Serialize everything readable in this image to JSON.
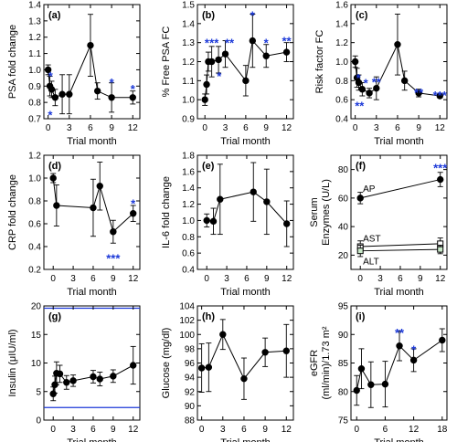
{
  "colors": {
    "ink": "#000000",
    "star": "#1c39d8",
    "reference": "#1c39d8",
    "alt_fill": "#c9e8c9"
  },
  "chart_data": [
    {
      "id": "a",
      "type": "line",
      "panel_label": "(a)",
      "xlabel": "Trial month",
      "ylabel": "PSA fold change",
      "xlim": [
        -0.6,
        13
      ],
      "ylim": [
        0.7,
        1.4
      ],
      "xticks": [
        0,
        3,
        6,
        9,
        12
      ],
      "yticks": [
        0.7,
        0.8,
        0.9,
        1.0,
        1.1,
        1.2,
        1.3,
        1.4
      ],
      "series": [
        {
          "marker": "circle",
          "fill": "#000000",
          "points": [
            {
              "x": 0,
              "y": 1.0,
              "err": 0.03
            },
            {
              "x": 0.25,
              "y": 0.9,
              "err": 0.06
            },
            {
              "x": 0.5,
              "y": 0.88,
              "err": 0.05
            },
            {
              "x": 1,
              "y": 0.83,
              "err": 0.05
            },
            {
              "x": 2,
              "y": 0.85,
              "err": 0.12
            },
            {
              "x": 3,
              "y": 0.85,
              "err": 0.12
            },
            {
              "x": 6,
              "y": 1.15,
              "err": 0.19
            },
            {
              "x": 7,
              "y": 0.87,
              "err": 0.05
            },
            {
              "x": 9,
              "y": 0.83,
              "err": 0.09
            },
            {
              "x": 12,
              "y": 0.83,
              "err": 0.04
            }
          ]
        }
      ],
      "annotations": [
        {
          "text": "*",
          "x": 0.35,
          "y": 0.97
        },
        {
          "text": "*",
          "x": 0.3,
          "y": 0.73
        },
        {
          "text": "*",
          "x": 9,
          "y": 0.93
        },
        {
          "text": "*",
          "x": 12,
          "y": 0.89
        }
      ]
    },
    {
      "id": "b",
      "type": "line",
      "panel_label": "(b)",
      "xlabel": "Trial month",
      "ylabel": "% Free PSA FC",
      "xlim": [
        -1.1,
        13
      ],
      "ylim": [
        0.9,
        1.5
      ],
      "xticks": [
        0,
        3,
        6,
        9,
        12
      ],
      "yticks": [
        0.9,
        1.0,
        1.1,
        1.2,
        1.3,
        1.4,
        1.5
      ],
      "series": [
        {
          "marker": "circle",
          "fill": "#000000",
          "points": [
            {
              "x": 0,
              "y": 1.0,
              "err": 0.03
            },
            {
              "x": 0.25,
              "y": 1.08,
              "err": 0.05
            },
            {
              "x": 0.5,
              "y": 1.2,
              "err": 0.05
            },
            {
              "x": 1,
              "y": 1.2,
              "err": 0.08
            },
            {
              "x": 2,
              "y": 1.21,
              "err": 0.07
            },
            {
              "x": 3,
              "y": 1.24,
              "err": 0.07
            },
            {
              "x": 6,
              "y": 1.1,
              "err": 0.08
            },
            {
              "x": 7,
              "y": 1.31,
              "err": 0.14
            },
            {
              "x": 9,
              "y": 1.23,
              "err": 0.06
            },
            {
              "x": 12,
              "y": 1.25,
              "err": 0.05
            }
          ]
        }
      ],
      "annotations": [
        {
          "text": "*",
          "x": 0.3,
          "y": 1.305
        },
        {
          "text": "**",
          "x": 1.35,
          "y": 1.305
        },
        {
          "text": "*",
          "x": 2.1,
          "y": 1.13
        },
        {
          "text": "**",
          "x": 3.6,
          "y": 1.305
        },
        {
          "text": "*",
          "x": 7,
          "y": 1.45
        },
        {
          "text": "*",
          "x": 9,
          "y": 1.305
        },
        {
          "text": "**",
          "x": 12,
          "y": 1.315
        }
      ]
    },
    {
      "id": "c",
      "type": "line",
      "panel_label": "(c)",
      "xlabel": "Trial month",
      "ylabel": "Risk factor FC",
      "xlim": [
        -0.6,
        13
      ],
      "ylim": [
        0.4,
        1.6
      ],
      "xticks": [
        0,
        3,
        6,
        9,
        12
      ],
      "yticks": [
        0.4,
        0.6,
        0.8,
        1.0,
        1.2,
        1.4,
        1.6
      ],
      "series": [
        {
          "marker": "circle",
          "fill": "#000000",
          "points": [
            {
              "x": 0,
              "y": 1.0,
              "err": 0.06
            },
            {
              "x": 0.25,
              "y": 0.83,
              "err": 0.1
            },
            {
              "x": 0.5,
              "y": 0.78,
              "err": 0.08
            },
            {
              "x": 1,
              "y": 0.71,
              "err": 0.07
            },
            {
              "x": 2,
              "y": 0.67,
              "err": 0.05
            },
            {
              "x": 3,
              "y": 0.72,
              "err": 0.12
            },
            {
              "x": 6,
              "y": 1.18,
              "err": 0.32
            },
            {
              "x": 7,
              "y": 0.8,
              "err": 0.1
            },
            {
              "x": 9,
              "y": 0.67,
              "err": 0.04
            },
            {
              "x": 12,
              "y": 0.64,
              "err": 0.02
            }
          ]
        }
      ],
      "annotations": [
        {
          "text": "*",
          "x": 0.45,
          "y": 0.84
        },
        {
          "text": "**",
          "x": 0.6,
          "y": 0.55
        },
        {
          "text": "*",
          "x": 1.5,
          "y": 0.79
        },
        {
          "text": "**",
          "x": 3,
          "y": 0.8
        },
        {
          "text": "**",
          "x": 9,
          "y": 0.69
        },
        {
          "text": "***",
          "x": 12,
          "y": 0.66
        }
      ]
    },
    {
      "id": "d",
      "type": "line",
      "panel_label": "(d)",
      "xlabel": "Trial month",
      "ylabel": "CRP fold change",
      "xlim": [
        -1.4,
        13
      ],
      "ylim": [
        0.2,
        1.2
      ],
      "xticks": [
        0,
        3,
        6,
        9,
        12
      ],
      "yticks": [
        0.2,
        0.4,
        0.6,
        0.8,
        1.0,
        1.2
      ],
      "series": [
        {
          "marker": "circle",
          "fill": "#000000",
          "points": [
            {
              "x": 0,
              "y": 1.0,
              "err": 0.04
            },
            {
              "x": 0.5,
              "y": 0.76,
              "err": 0.18
            },
            {
              "x": 6,
              "y": 0.74,
              "err": 0.25
            },
            {
              "x": 7,
              "y": 0.93,
              "err": 0.21
            },
            {
              "x": 9,
              "y": 0.53,
              "err": 0.1
            },
            {
              "x": 12,
              "y": 0.69,
              "err": 0.07
            }
          ]
        }
      ],
      "annotations": [
        {
          "text": "***",
          "x": 9,
          "y": 0.31
        },
        {
          "text": "*",
          "x": 12,
          "y": 0.79
        }
      ]
    },
    {
      "id": "e",
      "type": "line",
      "panel_label": "(e)",
      "xlabel": "Trial month",
      "ylabel": "IL-6 fold change",
      "xlim": [
        -1.4,
        13
      ],
      "ylim": [
        0.4,
        1.8
      ],
      "xticks": [
        0,
        3,
        6,
        9,
        12
      ],
      "yticks": [
        0.4,
        0.6,
        0.8,
        1.0,
        1.2,
        1.4,
        1.6,
        1.8
      ],
      "series": [
        {
          "marker": "circle",
          "fill": "#000000",
          "points": [
            {
              "x": 0,
              "y": 1.0,
              "err": 0.08
            },
            {
              "x": 1,
              "y": 0.99,
              "err": 0.16
            },
            {
              "x": 2,
              "y": 1.26,
              "err": 0.43
            },
            {
              "x": 7,
              "y": 1.35,
              "err": 0.36
            },
            {
              "x": 9,
              "y": 1.23,
              "err": 0.4
            },
            {
              "x": 12,
              "y": 0.96,
              "err": 0.28
            }
          ]
        }
      ],
      "annotations": []
    },
    {
      "id": "f",
      "type": "line",
      "panel_label": "(f)",
      "xlabel": "Trial month",
      "ylabel": "Serum Enzymes (U/L)",
      "xlim": [
        -1.4,
        13
      ],
      "ylim": [
        10,
        90
      ],
      "xticks": [
        0,
        3,
        6,
        9,
        12
      ],
      "yticks": [
        20,
        40,
        60,
        80
      ],
      "series": [
        {
          "name": "AP",
          "marker": "circle",
          "fill": "#000000",
          "label_x": 0.4,
          "label_y": 67,
          "points": [
            {
              "x": 0,
              "y": 60,
              "err": 4
            },
            {
              "x": 12,
              "y": 73,
              "err": 5
            }
          ]
        },
        {
          "name": "AST",
          "marker": "square",
          "fill": "#ffffff",
          "label_x": 0.4,
          "label_y": 32,
          "points": [
            {
              "x": 0,
              "y": 26,
              "err": 4
            },
            {
              "x": 12,
              "y": 28,
              "err": 4
            }
          ]
        },
        {
          "name": "ALT",
          "marker": "square",
          "fill": "#c9e8c9",
          "label_x": 0.4,
          "label_y": 16,
          "points": [
            {
              "x": 0,
              "y": 23,
              "err": 4
            },
            {
              "x": 12,
              "y": 24,
              "err": 3
            }
          ]
        }
      ],
      "annotations": [
        {
          "text": "***",
          "x": 12,
          "y": 82
        }
      ]
    },
    {
      "id": "g",
      "type": "line",
      "panel_label": "(g)",
      "xlabel": "Trial month",
      "ylabel": "Insulin (μIU/ml)",
      "xlim": [
        -1.4,
        13
      ],
      "ylim": [
        0,
        20
      ],
      "xticks": [
        0,
        3,
        6,
        9,
        12
      ],
      "yticks": [
        0,
        5,
        10,
        15,
        20
      ],
      "ref_lines": [
        19.6,
        2.2
      ],
      "series": [
        {
          "marker": "circle",
          "fill": "#000000",
          "points": [
            {
              "x": 0,
              "y": 4.6,
              "err": 1.2
            },
            {
              "x": 0.25,
              "y": 6.2,
              "err": 1.5
            },
            {
              "x": 0.5,
              "y": 8.2,
              "err": 2.0
            },
            {
              "x": 1,
              "y": 8.1,
              "err": 1.5
            },
            {
              "x": 2,
              "y": 6.6,
              "err": 1.2
            },
            {
              "x": 3,
              "y": 6.9,
              "err": 1.0
            },
            {
              "x": 6,
              "y": 7.6,
              "err": 1.1
            },
            {
              "x": 7,
              "y": 7.2,
              "err": 1.2
            },
            {
              "x": 9,
              "y": 7.7,
              "err": 1.1
            },
            {
              "x": 12,
              "y": 9.6,
              "err": 3.3
            }
          ]
        }
      ],
      "annotations": []
    },
    {
      "id": "h",
      "type": "line",
      "panel_label": "(h)",
      "xlabel": "Trial month",
      "ylabel": "Glucose (mg/dl)",
      "xlim": [
        -0.6,
        13
      ],
      "ylim": [
        88,
        104
      ],
      "xticks": [
        0,
        3,
        6,
        9,
        12
      ],
      "yticks": [
        88,
        90,
        92,
        94,
        96,
        98,
        100,
        102,
        104
      ],
      "series": [
        {
          "marker": "circle",
          "fill": "#000000",
          "points": [
            {
              "x": 0,
              "y": 95.3,
              "err": 3.4
            },
            {
              "x": 1,
              "y": 95.4,
              "err": 3.4
            },
            {
              "x": 3,
              "y": 100,
              "err": 2.1
            },
            {
              "x": 6,
              "y": 93.8,
              "err": 2.9
            },
            {
              "x": 9,
              "y": 97.5,
              "err": 2.0
            },
            {
              "x": 12,
              "y": 97.7,
              "err": 3.7
            }
          ]
        }
      ],
      "annotations": []
    },
    {
      "id": "i",
      "type": "line",
      "panel_label": "(i)",
      "xlabel": "Trial month",
      "ylabel": "eGFR (ml/min)/1.73 m²",
      "xlim": [
        -1.2,
        19
      ],
      "ylim": [
        75,
        95
      ],
      "xticks": [
        0,
        6,
        12,
        18
      ],
      "yticks": [
        75,
        80,
        85,
        90,
        95
      ],
      "series": [
        {
          "marker": "circle",
          "fill": "#000000",
          "points": [
            {
              "x": 0,
              "y": 80.2,
              "err": 2.6
            },
            {
              "x": 1,
              "y": 84.0,
              "err": 3.5
            },
            {
              "x": 3,
              "y": 81.2,
              "err": 4.0
            },
            {
              "x": 6,
              "y": 81.3,
              "err": 4.0
            },
            {
              "x": 9,
              "y": 88.0,
              "err": 2.6
            },
            {
              "x": 12,
              "y": 85.5,
              "err": 2.0
            },
            {
              "x": 18,
              "y": 89.0,
              "err": 2.0
            }
          ]
        }
      ],
      "annotations": [
        {
          "text": "**",
          "x": 9,
          "y": 90.5
        },
        {
          "text": "*",
          "x": 12,
          "y": 87.6
        }
      ]
    }
  ]
}
